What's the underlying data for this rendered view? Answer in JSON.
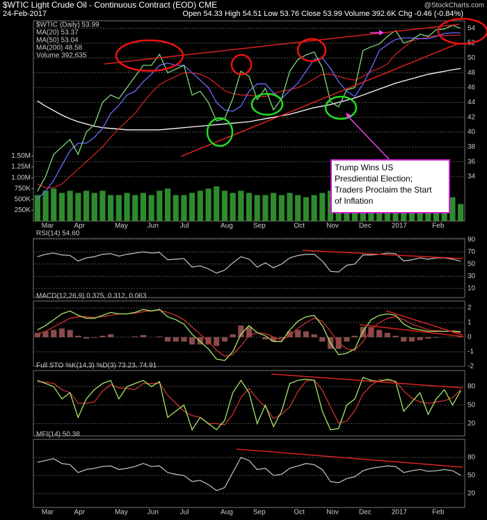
{
  "chart_data": [
    {
      "type": "line",
      "title": "$WTIC Light Crude Oil - Continuous Contract (EOD) CME",
      "date": "24-Feb-2017",
      "quote": "Open 54.33 High 54.51 Low 53.76 Close 53.99 Volume 392.6K Chg -0.46 (-0.84%)",
      "source": "@StockCharts.com",
      "annotation": [
        "Trump Wins US",
        "Presdiential Election;",
        "Traders Proclaim the Start",
        "of Inflation"
      ],
      "categories": [
        null,
        "Mar",
        null,
        null,
        null,
        "Apr",
        null,
        null,
        null,
        null,
        "May",
        null,
        null,
        null,
        "Jun",
        null,
        null,
        null,
        "Jul",
        null,
        null,
        null,
        null,
        "Aug",
        null,
        null,
        null,
        "Sep",
        null,
        null,
        null,
        null,
        "Oct",
        null,
        null,
        null,
        "Nov",
        null,
        null,
        null,
        "Dec",
        null,
        null,
        null,
        "2017",
        null,
        null,
        null,
        null,
        "Feb",
        null,
        null,
        null
      ],
      "ylim": [
        28,
        55
      ],
      "yticks": [
        34,
        36,
        38,
        40,
        42,
        44,
        46,
        48,
        50,
        52,
        54
      ],
      "y2lim": [
        0,
        1540000
      ],
      "y2ticks": [
        {
          "value": 250000,
          "label": "250K"
        },
        {
          "value": 500000,
          "label": "500K"
        },
        {
          "value": 750000,
          "label": "750K"
        },
        {
          "value": 1000000,
          "label": "1.00M"
        },
        {
          "value": 1250000,
          "label": "1.25M"
        },
        {
          "value": 1500000,
          "label": "1.50M"
        }
      ],
      "grid": true,
      "series": [
        {
          "name": "Volume 392,635",
          "color": "#2e8b2e",
          "type": "bar",
          "axis": "y2",
          "values": [
            600000,
            700000,
            750000,
            650000,
            700000,
            650000,
            700000,
            650000,
            700000,
            600000,
            600000,
            650000,
            600000,
            650000,
            600000,
            700000,
            750000,
            600000,
            600000,
            650000,
            700000,
            750000,
            800000,
            700000,
            650000,
            700000,
            650000,
            600000,
            600000,
            650000,
            600000,
            650000,
            600000,
            550000,
            600000,
            650000,
            700000,
            750000,
            700000,
            650000,
            750000,
            600000,
            550000,
            500000,
            550000,
            600000,
            500000,
            500000,
            550000,
            500000,
            550000,
            550000,
            392635
          ]
        },
        {
          "name": "MA(200) 48.58",
          "color": "#ffffff",
          "values": [
            44.2,
            43.5,
            42.9,
            42.3,
            41.8,
            41.4,
            41.1,
            40.8,
            40.6,
            40.5,
            40.4,
            40.3,
            40.3,
            40.3,
            40.3,
            40.3,
            40.4,
            40.5,
            40.6,
            40.7,
            40.8,
            40.9,
            41.0,
            41.1,
            41.2,
            41.3,
            41.4,
            41.6,
            41.8,
            42.0,
            42.2,
            42.4,
            42.7,
            43.0,
            43.3,
            43.5,
            43.7,
            44.0,
            44.3,
            44.6,
            45.0,
            45.4,
            45.8,
            46.2,
            46.6,
            46.9,
            47.2,
            47.5,
            47.8,
            48.0,
            48.2,
            48.4,
            48.58
          ]
        },
        {
          "name": "MA(50) 53.04",
          "color": "#cc2222",
          "values": [
            33,
            32.5,
            32.5,
            33,
            34,
            35,
            36,
            37,
            38,
            39.3,
            40.5,
            41.5,
            42.5,
            44,
            45.3,
            46.4,
            47,
            47.5,
            48,
            48,
            47.8,
            47.3,
            46.5,
            45.6,
            45.2,
            45,
            45,
            44.8,
            44.8,
            45.2,
            45.5,
            45.7,
            46,
            46.5,
            47.2,
            47.8,
            47.8,
            47.5,
            47.2,
            47,
            47.5,
            48.2,
            48.6,
            49.2,
            50.5,
            51.4,
            52.3,
            52.6,
            52.8,
            53,
            53,
            53.05,
            53.04
          ]
        },
        {
          "name": "MA(20) 53.37",
          "color": "#6a6aff",
          "values": [
            31,
            32,
            33.5,
            35.5,
            37.5,
            38.5,
            38.5,
            39.3,
            40.5,
            42.5,
            43.6,
            45,
            45.5,
            46.8,
            47.8,
            49,
            49.3,
            49,
            49,
            48,
            47,
            46,
            44,
            43,
            42.8,
            43.5,
            45.5,
            46.5,
            46.5,
            45.3,
            44.5,
            45.6,
            46.6,
            48.2,
            49.8,
            50,
            48.6,
            46.8,
            45.5,
            44.8,
            46.5,
            48.6,
            51,
            51.8,
            52.5,
            52.7,
            52.7,
            52.6,
            52.6,
            52.9,
            53.3,
            53.4,
            53.37
          ]
        },
        {
          "name": "$WTIC (Daily) 53.99",
          "color": "#7ddc7d",
          "values": [
            32,
            34,
            37,
            38,
            39,
            37,
            40,
            41,
            44,
            45,
            44.5,
            46,
            47.5,
            49,
            49,
            50.5,
            48,
            48.5,
            49,
            45,
            45.5,
            44,
            41.5,
            41.8,
            44.5,
            48.2,
            47.5,
            44.4,
            45.9,
            43,
            44.5,
            48.2,
            49.8,
            50.4,
            50.8,
            48.7,
            44.1,
            43.4,
            45.7,
            46,
            51,
            51.5,
            51.9,
            52.9,
            53.7,
            52,
            52.4,
            53.2,
            52.9,
            53.8,
            53.9,
            54.4,
            53.99
          ]
        }
      ]
    },
    {
      "type": "line",
      "title": "RSI(14) 54.60",
      "ylim": [
        -5,
        92
      ],
      "yticks": [
        10,
        30,
        50,
        70,
        90
      ],
      "grid": true,
      "series": [
        {
          "name": "RSI",
          "color": "#bbbbbb",
          "values": [
            62,
            66,
            68,
            65,
            64,
            55,
            60,
            62,
            66,
            67,
            63,
            66,
            68,
            70,
            68,
            69,
            57,
            58,
            59,
            45,
            47,
            42,
            35,
            40,
            52,
            62,
            58,
            45,
            52,
            44,
            50,
            60,
            64,
            66,
            66,
            55,
            38,
            37,
            48,
            50,
            65,
            65,
            66,
            68,
            67,
            55,
            57,
            60,
            58,
            60,
            60,
            58,
            54.6
          ]
        }
      ]
    },
    {
      "type": "line",
      "title": "MACD(12,26,9) 0.375, 0.312, 0.063",
      "ylim": [
        -2,
        2.48
      ],
      "yticks": [
        -2,
        -1,
        0,
        1,
        2
      ],
      "grid": true,
      "series": [
        {
          "name": "Histogram",
          "color": "#8a4a4a",
          "type": "bar",
          "values": [
            0.3,
            0.4,
            0.5,
            0.6,
            0.5,
            0.1,
            -0.1,
            -0.05,
            0.1,
            0.2,
            0,
            0,
            0.05,
            0.15,
            0,
            0.05,
            -0.3,
            -0.3,
            -0.3,
            -0.5,
            -0.5,
            -0.5,
            -0.6,
            -0.3,
            0.2,
            0.8,
            0.7,
            0,
            -0.15,
            -0.3,
            -0.1,
            0.4,
            0.5,
            0.4,
            0.2,
            -0.3,
            -0.8,
            -0.8,
            -0.3,
            0.1,
            0.7,
            0.7,
            0.5,
            0.3,
            0.1,
            -0.3,
            -0.3,
            -0.2,
            -0.1,
            -0.05,
            0,
            0.02,
            0.063
          ]
        },
        {
          "name": "Signal",
          "color": "#cc3333",
          "values": [
            0.2,
            0.4,
            0.7,
            1.0,
            1.3,
            1.4,
            1.4,
            1.35,
            1.4,
            1.5,
            1.6,
            1.6,
            1.65,
            1.75,
            1.8,
            1.85,
            1.7,
            1.5,
            1.2,
            0.7,
            0.2,
            -0.3,
            -0.9,
            -1.3,
            -1.2,
            -0.6,
            0.1,
            0.3,
            0.25,
            0,
            -0.2,
            0.1,
            0.6,
            1.0,
            1.3,
            1.1,
            0.4,
            -0.4,
            -0.8,
            -0.9,
            -0.3,
            0.5,
            1.0,
            1.3,
            1.4,
            1.2,
            0.9,
            0.7,
            0.5,
            0.45,
            0.4,
            0.4,
            0.312
          ]
        },
        {
          "name": "MACD",
          "color": "#a8e86a",
          "values": [
            0.5,
            0.8,
            1.2,
            1.6,
            1.8,
            1.5,
            1.3,
            1.3,
            1.5,
            1.7,
            1.6,
            1.6,
            1.7,
            1.9,
            1.8,
            1.9,
            1.4,
            1.2,
            0.9,
            0.2,
            -0.3,
            -0.8,
            -1.5,
            -1.6,
            -1.0,
            0.2,
            0.8,
            0.3,
            0.1,
            -0.3,
            -0.3,
            0.5,
            1.1,
            1.4,
            1.5,
            0.8,
            -0.4,
            -1.2,
            -1.1,
            -0.8,
            0.4,
            1.2,
            1.5,
            1.6,
            1.5,
            0.9,
            0.6,
            0.5,
            0.4,
            0.4,
            0.4,
            0.42,
            0.375
          ]
        }
      ]
    },
    {
      "type": "line",
      "title": "Full STO %K(14,3) %D(3) 73.23, 74.91",
      "ylim": [
        0,
        106
      ],
      "yticks": [
        20,
        50,
        80
      ],
      "grid": true,
      "series": [
        {
          "name": "%D",
          "color": "#cc3333",
          "values": [
            88,
            87,
            85,
            75,
            70,
            53,
            53,
            55,
            73,
            83,
            78,
            77,
            75,
            85,
            85,
            86,
            66,
            53,
            40,
            33,
            30,
            20,
            20,
            18,
            35,
            62,
            77,
            60,
            47,
            28,
            35,
            47,
            72,
            89,
            91,
            74,
            47,
            21,
            24,
            41,
            68,
            82,
            91,
            90,
            89,
            73,
            61,
            55,
            53,
            55,
            57,
            62,
            74.91
          ]
        },
        {
          "name": "%K",
          "color": "#a8e86a",
          "values": [
            90,
            85,
            80,
            60,
            70,
            30,
            60,
            75,
            85,
            90,
            60,
            80,
            85,
            90,
            80,
            88,
            30,
            40,
            50,
            10,
            30,
            20,
            10,
            25,
            70,
            90,
            70,
            20,
            50,
            15,
            40,
            85,
            90,
            92,
            90,
            40,
            10,
            12,
            50,
            60,
            95,
            90,
            88,
            92,
            88,
            40,
            55,
            70,
            35,
            60,
            75,
            50,
            73.23
          ]
        }
      ]
    },
    {
      "type": "line",
      "title": "MFI(14) 50.38",
      "ylim": [
        -3,
        110
      ],
      "yticks": [
        20,
        50,
        80
      ],
      "grid": true,
      "categories": [
        null,
        "Mar",
        null,
        null,
        null,
        "Apr",
        null,
        null,
        null,
        null,
        "May",
        null,
        null,
        null,
        "Jun",
        null,
        null,
        null,
        "Jul",
        null,
        null,
        null,
        null,
        "Aug",
        null,
        null,
        null,
        "Sep",
        null,
        null,
        null,
        null,
        "Oct",
        null,
        null,
        null,
        "Nov",
        null,
        null,
        null,
        "Dec",
        null,
        null,
        null,
        "2017",
        null,
        null,
        null,
        null,
        "Feb",
        null,
        null,
        null
      ],
      "series": [
        {
          "name": "MFI",
          "color": "#bbbbbb",
          "values": [
            72,
            75,
            78,
            70,
            68,
            55,
            60,
            62,
            65,
            66,
            60,
            62,
            65,
            70,
            65,
            66,
            55,
            52,
            50,
            40,
            42,
            35,
            25,
            30,
            55,
            80,
            75,
            60,
            62,
            50,
            52,
            62,
            66,
            70,
            68,
            60,
            40,
            38,
            45,
            48,
            58,
            62,
            64,
            66,
            65,
            55,
            58,
            60,
            57,
            58,
            60,
            58,
            50.38
          ]
        }
      ]
    }
  ]
}
